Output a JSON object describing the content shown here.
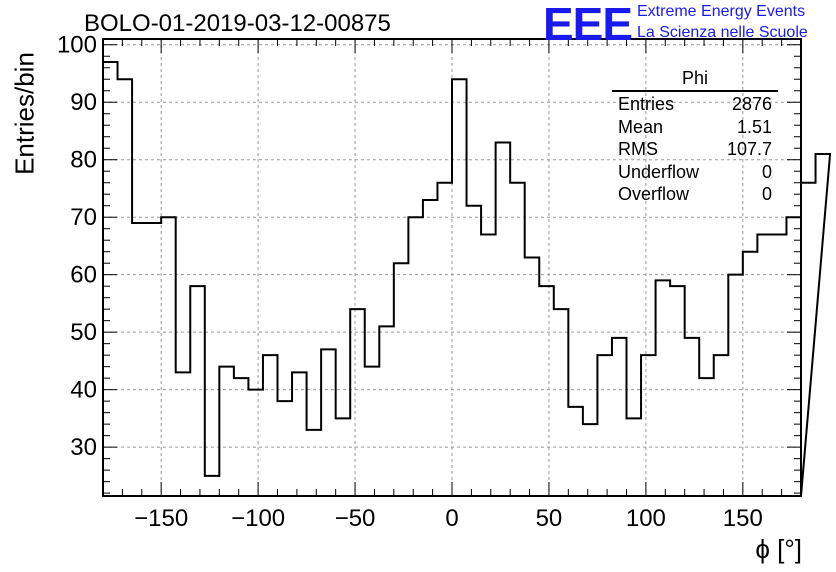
{
  "header": {
    "title": "BOLO-01-2019-03-12-00875",
    "logo_text": "EEE",
    "logo_line1": "Extreme Energy Events",
    "logo_line2": "La Scienza nelle Scuole",
    "brand_color": "#1a1aee"
  },
  "stats": {
    "name": "Phi",
    "rows": [
      {
        "label": "Entries",
        "value": "2876"
      },
      {
        "label": "Mean",
        "value": "1.51"
      },
      {
        "label": "RMS",
        "value": "107.7"
      },
      {
        "label": "Underflow",
        "value": "0"
      },
      {
        "label": "Overflow",
        "value": "0"
      }
    ]
  },
  "chart_data": {
    "type": "histogram",
    "title": "BOLO-01-2019-03-12-00875",
    "xlabel": "ϕ [°]",
    "ylabel": "Entries/bin",
    "xlim": [
      -180,
      180
    ],
    "ylim": [
      21.5,
      101
    ],
    "bin_width": 7.5,
    "x_ticks": [
      -150,
      -100,
      -50,
      0,
      50,
      100,
      150
    ],
    "x_tick_labels": [
      "−150",
      "−100",
      "−50",
      "0",
      "50",
      "100",
      "150"
    ],
    "y_ticks": [
      30,
      40,
      50,
      60,
      70,
      80,
      90,
      100
    ],
    "y_tick_labels": [
      "30",
      "40",
      "50",
      "60",
      "70",
      "80",
      "90",
      "100"
    ],
    "grid": true,
    "values": [
      97,
      94,
      69,
      69,
      70,
      43,
      58,
      25,
      44,
      42,
      40,
      46,
      38,
      43,
      33,
      47,
      35,
      54,
      44,
      51,
      62,
      70,
      73,
      76,
      94,
      72,
      67,
      83,
      76,
      63,
      58,
      54,
      37,
      34,
      46,
      49,
      35,
      46,
      59,
      58,
      49,
      42,
      46,
      60,
      64,
      67,
      67,
      70,
      76,
      81
    ]
  }
}
